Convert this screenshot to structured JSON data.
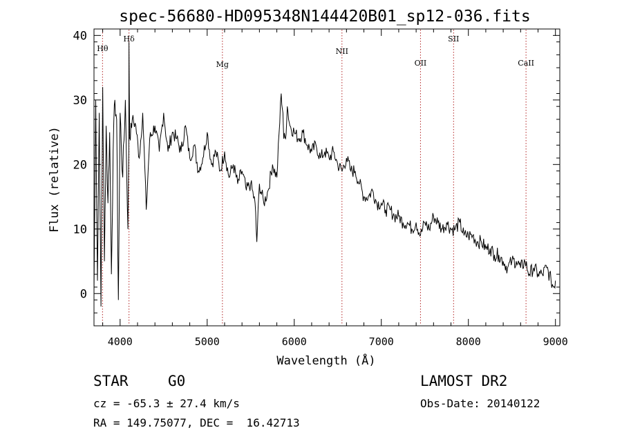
{
  "chart_data": {
    "type": "line",
    "title": "spec-56680-HD095348N144420B01_sp12-036.fits",
    "xlabel": "Wavelength (Å)",
    "ylabel": "Flux (relative)",
    "xlim": [
      3700,
      9050
    ],
    "ylim": [
      -5,
      41
    ],
    "xticks": [
      4000,
      5000,
      6000,
      7000,
      8000,
      9000
    ],
    "yticks": [
      0,
      10,
      20,
      30,
      40
    ],
    "grid": false,
    "series": [
      {
        "color": "#000000",
        "x": [
          3700,
          3720,
          3740,
          3760,
          3780,
          3800,
          3820,
          3840,
          3860,
          3880,
          3900,
          3920,
          3940,
          3960,
          3980,
          4000,
          4030,
          4060,
          4090,
          4100,
          4102,
          4110,
          4140,
          4180,
          4220,
          4260,
          4300,
          4340,
          4400,
          4450,
          4500,
          4550,
          4600,
          4650,
          4700,
          4750,
          4800,
          4850,
          4900,
          4950,
          5000,
          5050,
          5100,
          5150,
          5200,
          5250,
          5300,
          5350,
          5400,
          5450,
          5500,
          5550,
          5570,
          5600,
          5650,
          5700,
          5750,
          5800,
          5850,
          5870,
          5880,
          5900,
          5920,
          5950,
          6000,
          6050,
          6100,
          6150,
          6200,
          6250,
          6300,
          6350,
          6400,
          6450,
          6500,
          6550,
          6600,
          6650,
          6700,
          6750,
          6800,
          6850,
          6900,
          6950,
          7000,
          7050,
          7100,
          7150,
          7200,
          7250,
          7300,
          7350,
          7400,
          7450,
          7500,
          7550,
          7600,
          7650,
          7700,
          7750,
          7800,
          7850,
          7900,
          7950,
          8000,
          8050,
          8100,
          8150,
          8200,
          8250,
          8300,
          8350,
          8400,
          8450,
          8500,
          8550,
          8600,
          8650,
          8700,
          8750,
          8800,
          8850,
          8900,
          8950,
          8980,
          9000
        ],
        "y": [
          0,
          30,
          2,
          28,
          -2,
          32,
          5,
          26,
          14,
          25,
          3,
          22,
          30,
          27,
          -1,
          28,
          18,
          30,
          10,
          22,
          39,
          24,
          27,
          26,
          21,
          28,
          13,
          24,
          26,
          22,
          28,
          22,
          25,
          24,
          22,
          26,
          21,
          23,
          19,
          21,
          25,
          20,
          22,
          19,
          22,
          18,
          20,
          17,
          19,
          16,
          17,
          14,
          8,
          17,
          14,
          16,
          20,
          18,
          31,
          28,
          24,
          24,
          29,
          26,
          25,
          24,
          25,
          23,
          22,
          23,
          21,
          22,
          21,
          22,
          20,
          19,
          21,
          19,
          19,
          17,
          15,
          15,
          16,
          14,
          14,
          13,
          13,
          12,
          12,
          11,
          11,
          10,
          11,
          9,
          11,
          10,
          12,
          11,
          10,
          11,
          10,
          10,
          11,
          9,
          9,
          9,
          8,
          8,
          7,
          7,
          6,
          6,
          5,
          4,
          5,
          5,
          4,
          5,
          3,
          4,
          3,
          3,
          4,
          2,
          1,
          2
        ]
      }
    ],
    "annotations": [
      {
        "label": "Hθ",
        "x": 3798
      },
      {
        "label": "Hδ",
        "x": 4102
      },
      {
        "label": "Mg",
        "x": 5175
      },
      {
        "label": "NII",
        "x": 6548
      },
      {
        "label": "OII",
        "x": 7450
      },
      {
        "label": "SII",
        "x": 7830
      },
      {
        "label": "CaII",
        "x": 8662
      }
    ]
  },
  "info": {
    "object_class": "STAR",
    "subclass": "G0",
    "cz": "cz = -65.3 ± 27.4 km/s",
    "coords": "RA = 149.75077, DEC =  16.42713",
    "survey": "LAMOST DR2",
    "obs_date": "Obs-Date: 20140122"
  }
}
